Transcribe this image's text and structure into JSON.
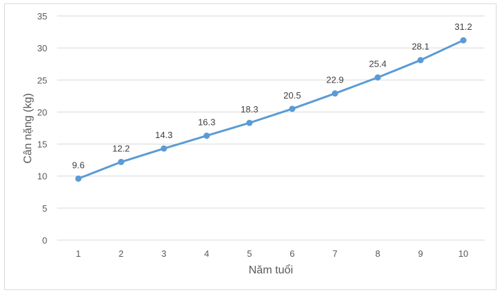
{
  "chart_data": {
    "type": "line",
    "title": "",
    "xlabel": "Năm tuổi",
    "ylabel": "Cân nặng (kg)",
    "categories": [
      "1",
      "2",
      "3",
      "4",
      "5",
      "6",
      "7",
      "8",
      "9",
      "10"
    ],
    "series": [
      {
        "name": "Cân nặng",
        "values": [
          9.6,
          12.2,
          14.3,
          16.3,
          18.3,
          20.5,
          22.9,
          25.4,
          28.1,
          31.2
        ],
        "color": "#5b9bd5"
      }
    ],
    "data_labels": [
      "9.6",
      "12.2",
      "14.3",
      "16.3",
      "18.3",
      "20.5",
      "22.9",
      "25.4",
      "28.1",
      "31.2"
    ],
    "ylim": [
      0,
      35
    ],
    "yticks": [
      "0",
      "5",
      "10",
      "15",
      "20",
      "25",
      "30",
      "35"
    ],
    "grid": true,
    "legend": "none"
  }
}
